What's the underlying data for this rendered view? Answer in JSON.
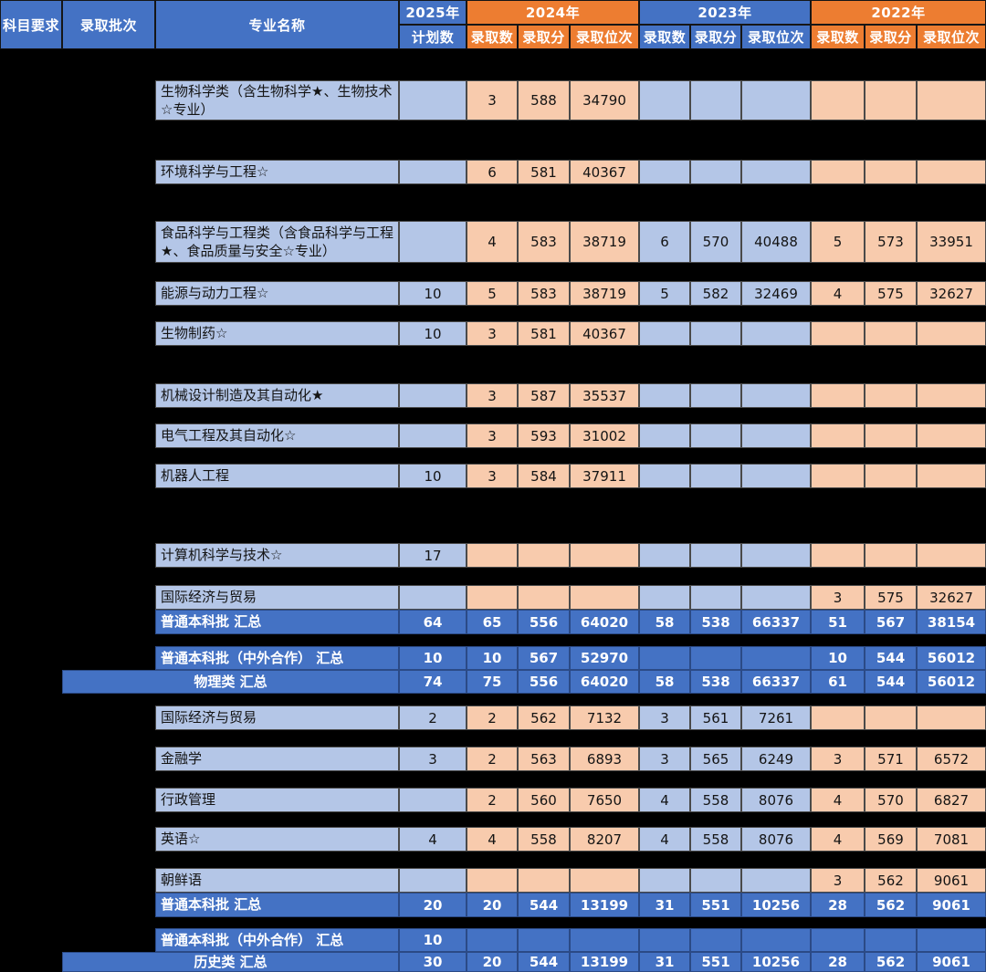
{
  "colors": {
    "header_blue": "#4472C4",
    "header_orange": "#ED7D31",
    "body_blue": "#B4C6E7",
    "body_orange": "#F8CBAD",
    "summary_blue": "#4472C4",
    "background": "#000000"
  },
  "header": {
    "col_subject": "科目要求",
    "col_batch": "录取批次",
    "col_major": "专业名称",
    "year_2025": "2025年",
    "plan_count": "计划数",
    "year_2024": "2024年",
    "year_2023": "2023年",
    "year_2022": "2022年",
    "sub_count": "录取数",
    "sub_score": "录取分",
    "sub_rank": "录取位次"
  },
  "table": {
    "rows": [
      {
        "type": "normal",
        "label": "生物科学类（含生物科学★、生物技术☆专业）",
        "values": [
          "",
          "3",
          "588",
          "34790",
          "",
          "",
          "",
          "",
          "",
          ""
        ]
      },
      {
        "type": "normal",
        "label": "环境科学与工程☆",
        "values": [
          "",
          "6",
          "581",
          "40367",
          "",
          "",
          "",
          "",
          "",
          ""
        ]
      },
      {
        "type": "normal",
        "label": "食品科学与工程类（含食品科学与工程★、食品质量与安全☆专业）",
        "values": [
          "",
          "4",
          "583",
          "38719",
          "6",
          "570",
          "40488",
          "5",
          "573",
          "33951"
        ]
      },
      {
        "type": "normal",
        "label": "能源与动力工程☆",
        "values": [
          "10",
          "5",
          "583",
          "38719",
          "5",
          "582",
          "32469",
          "4",
          "575",
          "32627"
        ]
      },
      {
        "type": "normal",
        "label": "生物制药☆",
        "values": [
          "10",
          "3",
          "581",
          "40367",
          "",
          "",
          "",
          "",
          "",
          ""
        ]
      },
      {
        "type": "normal",
        "label": "机械设计制造及其自动化★",
        "values": [
          "",
          "3",
          "587",
          "35537",
          "",
          "",
          "",
          "",
          "",
          ""
        ]
      },
      {
        "type": "normal",
        "label": "电气工程及其自动化☆",
        "values": [
          "",
          "3",
          "593",
          "31002",
          "",
          "",
          "",
          "",
          "",
          ""
        ]
      },
      {
        "type": "normal",
        "label": "机器人工程",
        "values": [
          "10",
          "3",
          "584",
          "37911",
          "",
          "",
          "",
          "",
          "",
          ""
        ]
      },
      {
        "type": "normal",
        "label": "计算机科学与技术☆",
        "values": [
          "17",
          "",
          "",
          "",
          "",
          "",
          "",
          "",
          "",
          ""
        ]
      },
      {
        "type": "normal",
        "label": "国际经济与贸易",
        "values": [
          "",
          "",
          "",
          "",
          "",
          "",
          "",
          "3",
          "575",
          "32627"
        ]
      },
      {
        "type": "summary",
        "label": "普通本科批 汇总",
        "values": [
          "64",
          "65",
          "556",
          "64020",
          "58",
          "538",
          "66337",
          "51",
          "567",
          "38154"
        ]
      },
      {
        "type": "summary",
        "label": "普通本科批（中外合作） 汇总",
        "values": [
          "10",
          "10",
          "567",
          "52970",
          "",
          "",
          "",
          "10",
          "544",
          "56012"
        ]
      },
      {
        "type": "summary-wide",
        "label": "物理类 汇总",
        "values": [
          "74",
          "75",
          "556",
          "64020",
          "58",
          "538",
          "66337",
          "61",
          "544",
          "56012"
        ]
      },
      {
        "type": "normal",
        "label": "国际经济与贸易",
        "values": [
          "2",
          "2",
          "562",
          "7132",
          "3",
          "561",
          "7261",
          "",
          "",
          ""
        ]
      },
      {
        "type": "normal",
        "label": "金融学",
        "values": [
          "3",
          "2",
          "563",
          "6893",
          "3",
          "565",
          "6249",
          "3",
          "571",
          "6572"
        ]
      },
      {
        "type": "normal",
        "label": "行政管理",
        "values": [
          "",
          "2",
          "560",
          "7650",
          "4",
          "558",
          "8076",
          "4",
          "570",
          "6827"
        ]
      },
      {
        "type": "normal",
        "label": "英语☆",
        "values": [
          "4",
          "4",
          "558",
          "8207",
          "4",
          "558",
          "8076",
          "4",
          "569",
          "7081"
        ]
      },
      {
        "type": "normal",
        "label": "朝鲜语",
        "values": [
          "",
          "",
          "",
          "",
          "",
          "",
          "",
          "3",
          "562",
          "9061"
        ]
      },
      {
        "type": "summary",
        "label": "普通本科批 汇总",
        "values": [
          "20",
          "20",
          "544",
          "13199",
          "31",
          "551",
          "10256",
          "28",
          "562",
          "9061"
        ]
      },
      {
        "type": "summary",
        "label": "普通本科批（中外合作） 汇总",
        "values": [
          "10",
          "",
          "",
          "",
          "",
          "",
          "",
          "",
          "",
          ""
        ]
      },
      {
        "type": "summary-wide",
        "label": "历史类 汇总",
        "values": [
          "30",
          "20",
          "544",
          "13199",
          "31",
          "551",
          "10256",
          "28",
          "562",
          "9061"
        ]
      }
    ]
  }
}
